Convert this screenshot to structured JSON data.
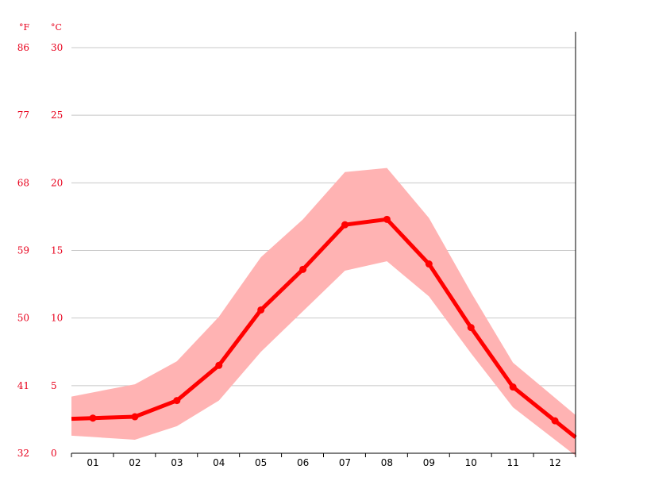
{
  "chart_data": {
    "type": "line",
    "units": {
      "fahrenheit": "°F",
      "celsius": "°C"
    },
    "categories": [
      "01",
      "02",
      "03",
      "04",
      "05",
      "06",
      "07",
      "08",
      "09",
      "10",
      "11",
      "12"
    ],
    "y_left_fahrenheit_ticks": [
      "32",
      "41",
      "50",
      "59",
      "68",
      "77",
      "86"
    ],
    "y_right_celsius_ticks": [
      "0",
      "5",
      "10",
      "15",
      "20",
      "25",
      "30"
    ],
    "ylim": [
      0,
      30
    ],
    "grid": true,
    "series": [
      {
        "role": "average",
        "values": [
          2.6,
          2.7,
          3.9,
          6.5,
          10.6,
          13.6,
          16.9,
          17.3,
          14.0,
          9.3,
          4.9,
          2.4
        ]
      },
      {
        "role": "band-max",
        "values": [
          4.5,
          5.1,
          6.8,
          10.1,
          14.5,
          17.3,
          20.8,
          21.1,
          17.4,
          11.9,
          6.7,
          4.1
        ]
      },
      {
        "role": "band-min",
        "values": [
          1.2,
          1.0,
          2.0,
          3.9,
          7.5,
          10.5,
          13.5,
          14.2,
          11.6,
          7.4,
          3.4,
          1.0
        ]
      }
    ],
    "colors": {
      "line": "#ff0000",
      "band": "#ffb3b3",
      "grid": "#c8c8c8",
      "tick_labels": "#e8001c",
      "axis": "#000000"
    }
  }
}
